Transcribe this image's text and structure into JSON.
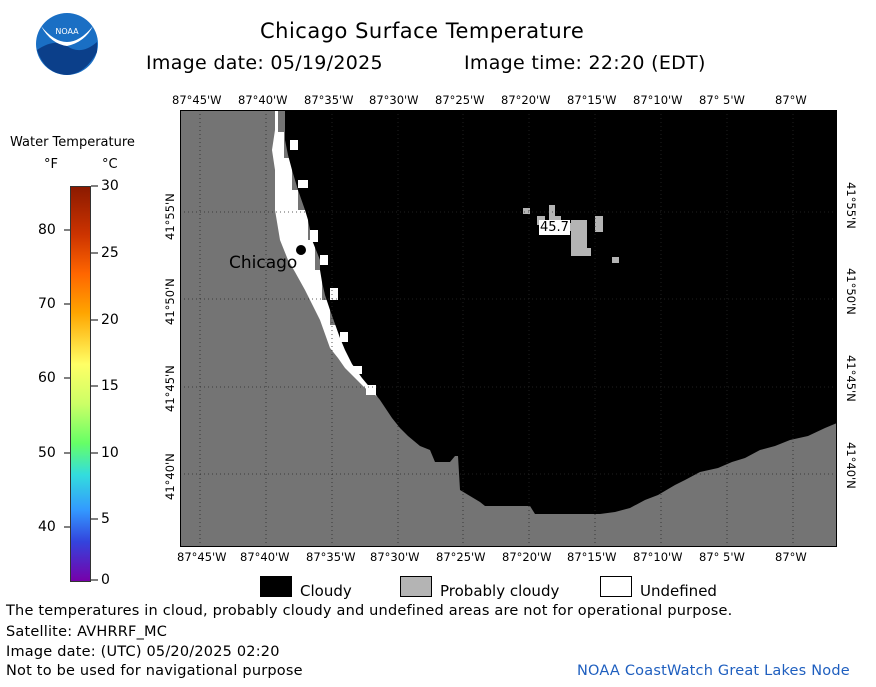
{
  "header": {
    "title": "Chicago Surface Temperature",
    "image_date": "Image date: 05/19/2025",
    "image_time": "Image time: 22:20 (EDT)"
  },
  "logo": {
    "text": "NOAA"
  },
  "scale": {
    "title": "Water Temperature",
    "unit_f": "°F",
    "unit_c": "°C",
    "f_ticks": [
      "80",
      "70",
      "60",
      "50",
      "40"
    ],
    "c_ticks": [
      "30",
      "25",
      "20",
      "15",
      "10",
      "5",
      "0"
    ]
  },
  "map": {
    "lon_labels": [
      "87°45'W",
      "87°40'W",
      "87°35'W",
      "87°30'W",
      "87°25'W",
      "87°20'W",
      "87°15'W",
      "87°10'W",
      "87° 5'W",
      "87°W"
    ],
    "lat_labels": [
      "41°55'N",
      "41°50'N",
      "41°45'N",
      "41°40'N"
    ],
    "city_label": "Chicago",
    "temp_value": "45.7",
    "colors": {
      "land": "#747474",
      "cloudy": "#000000",
      "probably_cloudy": "#b4b4b4",
      "undefined": "#ffffff"
    }
  },
  "legend": {
    "cloudy": "Cloudy",
    "probably_cloudy": "Probably cloudy",
    "undefined": "Undefined"
  },
  "footer": {
    "disclaimer": "The temperatures in cloud, probably cloudy and undefined areas are not for operational purpose.",
    "satellite": "Satellite: AVHRRF_MC",
    "utc_date": "Image date: (UTC) 05/20/2025  02:20",
    "nav_warning": "Not to be used for navigational purpose",
    "credit": "NOAA CoastWatch Great Lakes Node"
  }
}
